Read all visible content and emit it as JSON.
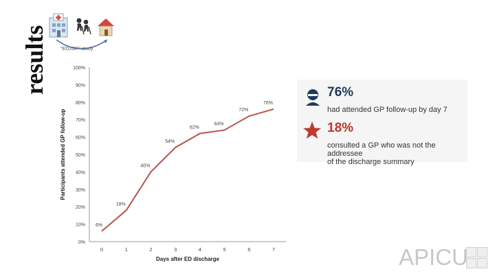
{
  "page": {
    "title": "results",
    "study_caption": "\"ED2GP\" study"
  },
  "chart_data": {
    "type": "line",
    "title": "",
    "xlabel": "Days after ED discharge",
    "ylabel": "Participants attended GP follow-up",
    "x": [
      0,
      1,
      2,
      3,
      4,
      5,
      6,
      7
    ],
    "xticks": [
      "0",
      "1",
      "2",
      "3",
      "4",
      "5",
      "6",
      "7"
    ],
    "yticks": [
      "0%",
      "10%",
      "20%",
      "30%",
      "40%",
      "50%",
      "60%",
      "70%",
      "80%",
      "90%",
      "100%"
    ],
    "ylim": [
      0,
      100
    ],
    "series": [
      {
        "values": [
          6,
          18,
          40,
          54,
          62,
          64,
          72,
          76
        ],
        "labels": [
          "6%",
          "18%",
          "40%",
          "54%",
          "62%",
          "64%",
          "72%",
          "76%"
        ],
        "color": "#c0504d"
      }
    ],
    "grid": false
  },
  "stats": [
    {
      "value": "76%",
      "text_lines": [
        "had attended GP follow-up by day 7"
      ],
      "color": "#1f3a5f",
      "icon": "person-icon"
    },
    {
      "value": "18%",
      "text_lines": [
        "consulted a GP who was not the addressee",
        "of the discharge summary"
      ],
      "color": "#c0392b",
      "icon": "star-icon"
    }
  ],
  "logo": {
    "text": "APICU"
  },
  "colors": {
    "line": "#c0504d",
    "stat_blue": "#1f3a5f",
    "stat_red": "#c0392b"
  },
  "icons": [
    "hospital-icon",
    "elderly-couple-icon",
    "house-icon",
    "person-icon",
    "star-icon"
  ]
}
